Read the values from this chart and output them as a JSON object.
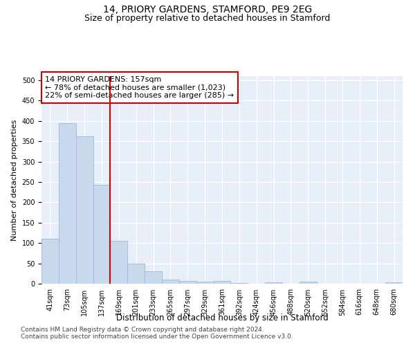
{
  "title": "14, PRIORY GARDENS, STAMFORD, PE9 2EG",
  "subtitle": "Size of property relative to detached houses in Stamford",
  "xlabel": "Distribution of detached houses by size in Stamford",
  "ylabel": "Number of detached properties",
  "bar_labels": [
    "41sqm",
    "73sqm",
    "105sqm",
    "137sqm",
    "169sqm",
    "201sqm",
    "233sqm",
    "265sqm",
    "297sqm",
    "329sqm",
    "361sqm",
    "392sqm",
    "424sqm",
    "456sqm",
    "488sqm",
    "520sqm",
    "552sqm",
    "584sqm",
    "616sqm",
    "648sqm",
    "680sqm"
  ],
  "bar_values": [
    110,
    395,
    362,
    243,
    106,
    50,
    31,
    10,
    6,
    5,
    6,
    2,
    0,
    3,
    0,
    5,
    0,
    0,
    0,
    0,
    3
  ],
  "bar_color": "#c8d9ee",
  "bar_edge_color": "#9ab9d8",
  "vline_x": 3.5,
  "vline_color": "#cc0000",
  "annotation_text": "14 PRIORY GARDENS: 157sqm\n← 78% of detached houses are smaller (1,023)\n22% of semi-detached houses are larger (285) →",
  "annotation_box_color": "#ffffff",
  "annotation_box_edge": "#cc0000",
  "ylim": [
    0,
    510
  ],
  "yticks": [
    0,
    50,
    100,
    150,
    200,
    250,
    300,
    350,
    400,
    450,
    500
  ],
  "background_color": "#e8eef8",
  "footer_line1": "Contains HM Land Registry data © Crown copyright and database right 2024.",
  "footer_line2": "Contains public sector information licensed under the Open Government Licence v3.0.",
  "title_fontsize": 10,
  "subtitle_fontsize": 9,
  "xlabel_fontsize": 8.5,
  "ylabel_fontsize": 8,
  "tick_fontsize": 7,
  "annotation_fontsize": 8,
  "footer_fontsize": 6.5
}
